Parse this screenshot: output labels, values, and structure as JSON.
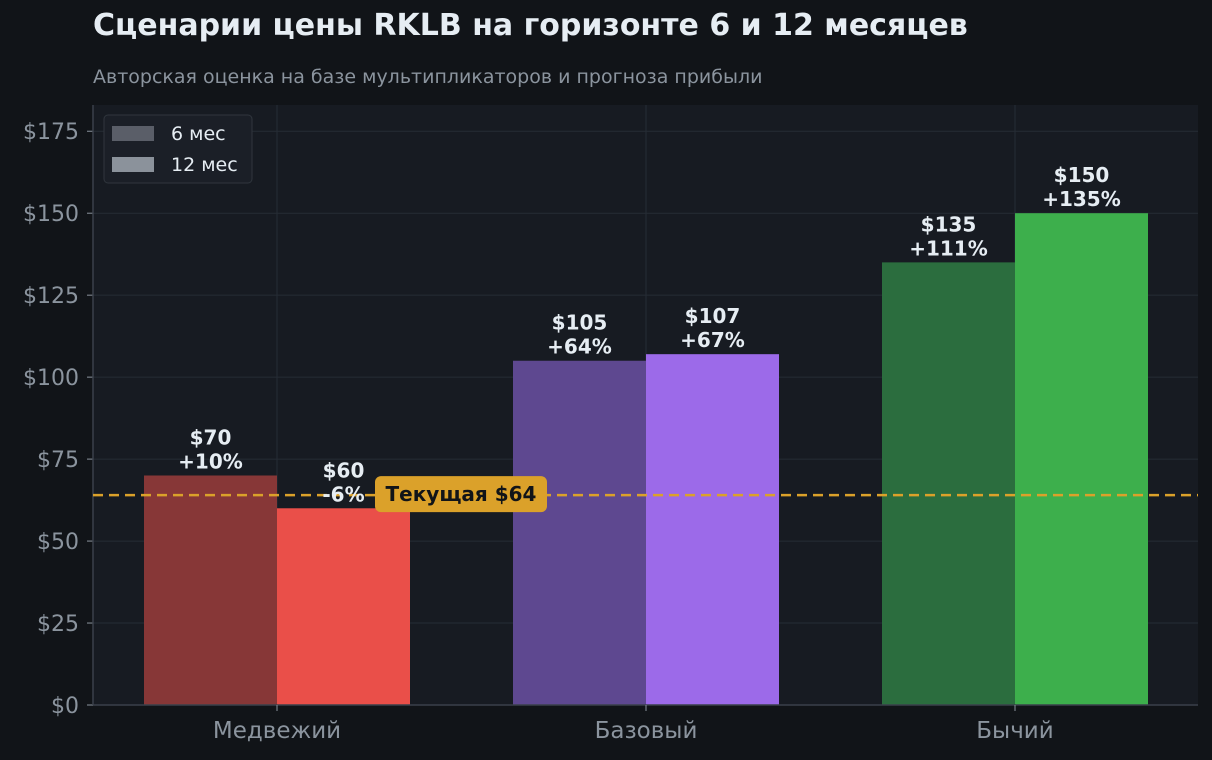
{
  "chart_data": {
    "type": "bar",
    "title": "Сценарии цены RKLB на горизонте 6 и 12 месяцев",
    "subtitle": "Авторская оценка на базе мультипликаторов и прогноза прибыли",
    "categories": [
      "Медвежий",
      "Базовый",
      "Бычий"
    ],
    "series": [
      {
        "name": "6 мес",
        "values": [
          70,
          105,
          135
        ],
        "labels": [
          "+10%",
          "+64%",
          "+111%"
        ],
        "value_labels": [
          "$70",
          "$105",
          "$135"
        ],
        "colors": [
          "#873737",
          "#5e4890",
          "#2b6d3e"
        ]
      },
      {
        "name": "12 мес",
        "values": [
          60,
          107,
          150
        ],
        "labels": [
          "-6%",
          "+67%",
          "+135%"
        ],
        "value_labels": [
          "$60",
          "$107",
          "$150"
        ],
        "colors": [
          "#ea4f49",
          "#9c6ae9",
          "#3daf4c"
        ]
      }
    ],
    "reference_line": {
      "value": 64,
      "label": "Текущая $64",
      "color": "#dba12a"
    },
    "ylim": [
      0,
      183
    ],
    "yticks": [
      0,
      25,
      50,
      75,
      100,
      125,
      150,
      175
    ],
    "ytick_labels": [
      "$0",
      "$25",
      "$50",
      "$75",
      "$100",
      "$125",
      "$150",
      "$175"
    ],
    "xlabel": "",
    "ylabel": "",
    "grid": true,
    "legend": "top-left",
    "legend_colors": [
      "#5a5e68",
      "#8b929b"
    ],
    "colors": {
      "background": "#111418",
      "plot_background": "#171b22",
      "grid": "#262c35",
      "axis": "#3a404a",
      "tick_text": "#8b949e",
      "label_text": "#e6edf3"
    }
  }
}
